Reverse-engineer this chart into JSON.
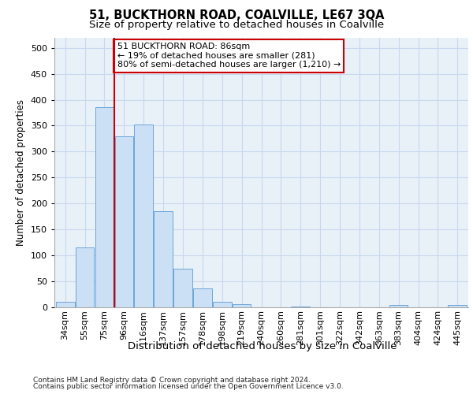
{
  "title": "51, BUCKTHORN ROAD, COALVILLE, LE67 3QA",
  "subtitle": "Size of property relative to detached houses in Coalville",
  "xlabel": "Distribution of detached houses by size in Coalville",
  "ylabel": "Number of detached properties",
  "footer_line1": "Contains HM Land Registry data © Crown copyright and database right 2024.",
  "footer_line2": "Contains public sector information licensed under the Open Government Licence v3.0.",
  "categories": [
    "34sqm",
    "55sqm",
    "75sqm",
    "96sqm",
    "116sqm",
    "137sqm",
    "157sqm",
    "178sqm",
    "198sqm",
    "219sqm",
    "240sqm",
    "260sqm",
    "281sqm",
    "301sqm",
    "322sqm",
    "342sqm",
    "363sqm",
    "383sqm",
    "404sqm",
    "424sqm",
    "445sqm"
  ],
  "bar_heights": [
    10,
    115,
    385,
    330,
    352,
    185,
    75,
    37,
    10,
    6,
    0,
    0,
    2,
    0,
    0,
    0,
    0,
    5,
    0,
    0,
    5
  ],
  "bar_color": "#cce0f5",
  "bar_edge_color": "#5b9bd5",
  "ylim_max": 520,
  "yticks": [
    0,
    50,
    100,
    150,
    200,
    250,
    300,
    350,
    400,
    450,
    500
  ],
  "vline_x": 2.5,
  "vline_color": "#cc0000",
  "annotation_text": "51 BUCKTHORN ROAD: 86sqm\n← 19% of detached houses are smaller (281)\n80% of semi-detached houses are larger (1,210) →",
  "annotation_box_edgecolor": "#cc0000",
  "grid_color": "#c8d8ee",
  "bg_color": "#e8f0f8",
  "title_fontsize": 10.5,
  "subtitle_fontsize": 9.5,
  "tick_fontsize": 8,
  "ylabel_fontsize": 8.5,
  "xlabel_fontsize": 9.5,
  "ann_fontsize": 8,
  "footer_fontsize": 6.5
}
